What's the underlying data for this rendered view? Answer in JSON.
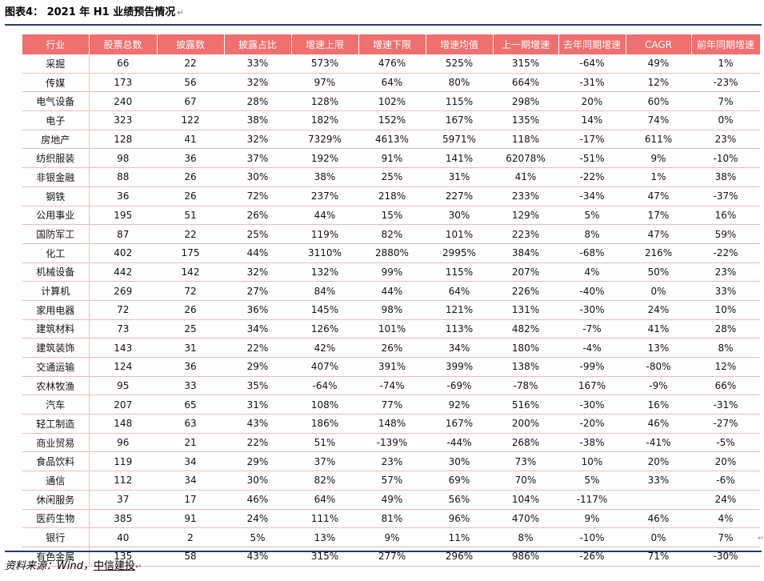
{
  "title": {
    "label": "图表4： 2021 年 H1 业绩预告情况",
    "mark": "↵"
  },
  "table": {
    "headers": [
      "行业",
      "股票总数",
      "披露数",
      "披露占比",
      "增速上限",
      "增速下限",
      "增速均值",
      "上一期增速",
      "去年同期增速",
      "CAGR",
      "前年同期增速"
    ],
    "rows": [
      [
        "采掘",
        "66",
        "22",
        "33%",
        "573%",
        "476%",
        "525%",
        "315%",
        "-64%",
        "49%",
        "1%"
      ],
      [
        "传媒",
        "173",
        "56",
        "32%",
        "97%",
        "64%",
        "80%",
        "664%",
        "-31%",
        "12%",
        "-23%"
      ],
      [
        "电气设备",
        "240",
        "67",
        "28%",
        "128%",
        "102%",
        "115%",
        "298%",
        "20%",
        "60%",
        "7%"
      ],
      [
        "电子",
        "323",
        "122",
        "38%",
        "182%",
        "152%",
        "167%",
        "135%",
        "14%",
        "74%",
        "0%"
      ],
      [
        "房地产",
        "128",
        "41",
        "32%",
        "7329%",
        "4613%",
        "5971%",
        "118%",
        "-17%",
        "611%",
        "23%"
      ],
      [
        "纺织服装",
        "98",
        "36",
        "37%",
        "192%",
        "91%",
        "141%",
        "62078%",
        "-51%",
        "9%",
        "-10%"
      ],
      [
        "非银金融",
        "88",
        "26",
        "30%",
        "38%",
        "25%",
        "31%",
        "41%",
        "-22%",
        "1%",
        "38%"
      ],
      [
        "钢铁",
        "36",
        "26",
        "72%",
        "237%",
        "218%",
        "227%",
        "233%",
        "-34%",
        "47%",
        "-37%"
      ],
      [
        "公用事业",
        "195",
        "51",
        "26%",
        "44%",
        "15%",
        "30%",
        "129%",
        "5%",
        "17%",
        "16%"
      ],
      [
        "国防军工",
        "87",
        "22",
        "25%",
        "119%",
        "82%",
        "101%",
        "223%",
        "8%",
        "47%",
        "59%"
      ],
      [
        "化工",
        "402",
        "175",
        "44%",
        "3110%",
        "2880%",
        "2995%",
        "384%",
        "-68%",
        "216%",
        "-22%"
      ],
      [
        "机械设备",
        "442",
        "142",
        "32%",
        "132%",
        "99%",
        "115%",
        "207%",
        "4%",
        "50%",
        "23%"
      ],
      [
        "计算机",
        "269",
        "72",
        "27%",
        "84%",
        "44%",
        "64%",
        "226%",
        "-40%",
        "0%",
        "33%"
      ],
      [
        "家用电器",
        "72",
        "26",
        "36%",
        "145%",
        "98%",
        "121%",
        "131%",
        "-30%",
        "24%",
        "10%"
      ],
      [
        "建筑材料",
        "73",
        "25",
        "34%",
        "126%",
        "101%",
        "113%",
        "482%",
        "-7%",
        "41%",
        "28%"
      ],
      [
        "建筑装饰",
        "143",
        "31",
        "22%",
        "42%",
        "26%",
        "34%",
        "180%",
        "-4%",
        "13%",
        "8%"
      ],
      [
        "交通运输",
        "124",
        "36",
        "29%",
        "407%",
        "391%",
        "399%",
        "138%",
        "-99%",
        "-80%",
        "12%"
      ],
      [
        "农林牧渔",
        "95",
        "33",
        "35%",
        "-64%",
        "-74%",
        "-69%",
        "-78%",
        "167%",
        "-9%",
        "66%"
      ],
      [
        "汽车",
        "207",
        "65",
        "31%",
        "108%",
        "77%",
        "92%",
        "516%",
        "-30%",
        "16%",
        "-31%"
      ],
      [
        "轻工制造",
        "148",
        "63",
        "43%",
        "186%",
        "148%",
        "167%",
        "200%",
        "-20%",
        "46%",
        "-27%"
      ],
      [
        "商业贸易",
        "96",
        "21",
        "22%",
        "51%",
        "-139%",
        "-44%",
        "268%",
        "-38%",
        "-41%",
        "-5%"
      ],
      [
        "食品饮料",
        "119",
        "34",
        "29%",
        "37%",
        "23%",
        "30%",
        "73%",
        "10%",
        "20%",
        "20%"
      ],
      [
        "通信",
        "112",
        "34",
        "30%",
        "82%",
        "57%",
        "69%",
        "70%",
        "5%",
        "33%",
        "-6%"
      ],
      [
        "休闲服务",
        "37",
        "17",
        "46%",
        "64%",
        "49%",
        "56%",
        "104%",
        "-117%",
        "",
        "24%"
      ],
      [
        "医药生物",
        "385",
        "91",
        "24%",
        "111%",
        "81%",
        "96%",
        "470%",
        "9%",
        "46%",
        "4%"
      ],
      [
        "银行",
        "40",
        "2",
        "5%",
        "13%",
        "9%",
        "11%",
        "8%",
        "-10%",
        "0%",
        "7%"
      ],
      [
        "有色金属",
        "135",
        "58",
        "43%",
        "315%",
        "277%",
        "296%",
        "986%",
        "-26%",
        "71%",
        "-30%"
      ]
    ]
  },
  "source": {
    "prefix": "资料来源：Wind，",
    "org": "中信建投",
    "mark": "↵"
  },
  "side_mark": "↵",
  "colors": {
    "header_bg": "#f06f6f",
    "rule": "#1f3f6e",
    "row_border": "#e8bcbc"
  }
}
